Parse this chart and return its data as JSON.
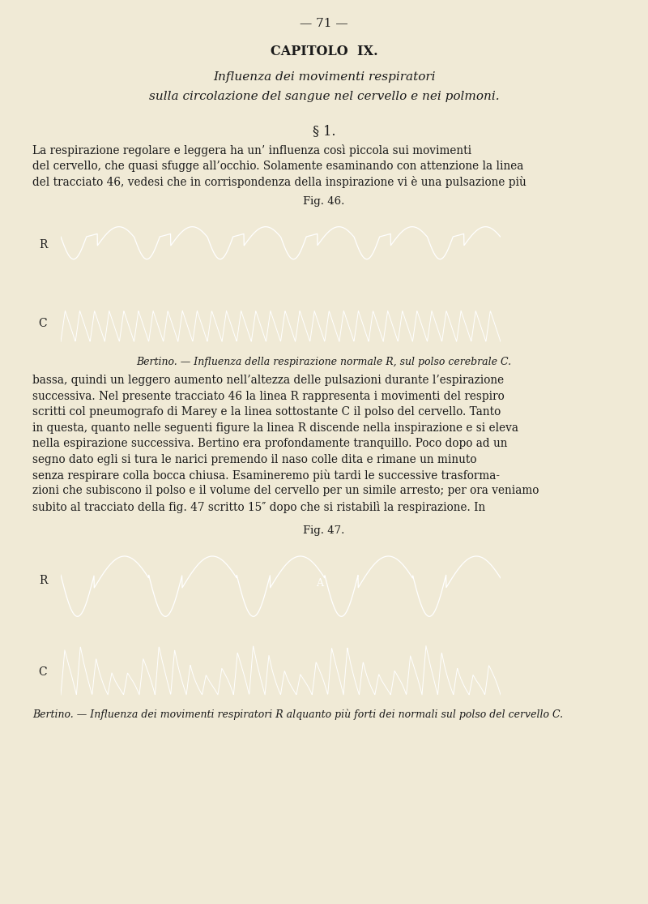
{
  "bg_color": "#f0ead6",
  "page_number": "— 71 —",
  "chapter_title": "CAPITOLO  IX.",
  "subtitle_line1": "Influenza dei movimenti respiratori",
  "subtitle_line2": "sulla circolazione del sangue nel cervello e nei polmoni.",
  "section": "§ 1.",
  "para1_line1": "La respirazione regolare e leggera ha un’ influenza così piccola sui movimenti",
  "para1_line2": "del cervello, che quasi sfugge all’occhio. Solamente esaminando con attenzione la linea",
  "para1_line3": "del tracciato 46, vedesi che in corrispondenza della inspirazione vi è una pulsazione più",
  "fig46_title": "Fig. 46.",
  "fig46_caption": "Bertino. — Influenza della respirazione normale R, sul polso cerebrale C.",
  "para2_line1": "bassa, quindi un leggero aumento nell’altezza delle pulsazioni durante l’espirazione",
  "para2_line2": "successiva. Nel presente tracciato 46 la linea R rappresenta i movimenti del respiro",
  "para2_line3": "scritti col pneumografo di Marey e la linea sottostante C il polso del cervello. Tanto",
  "para2_line4": "in questa, quanto nelle seguenti figure la linea R discende nella inspirazione e si eleva",
  "para2_line5": "nella espirazione successiva. Bertino era profondamente tranquillo. Poco dopo ad un",
  "para2_line6": "segno dato egli si tura le narici premendo il naso colle dita e rimane un minuto",
  "para2_line7": "senza respirare colla bocca chiusa. Esamineremo più tardi le successive trasforma-",
  "para2_line8": "zioni che subiscono il polso e il volume del cervello per un simile arresto; per ora veniamo",
  "para2_line9": "subito al tracciato della fig. 47 scritto 15″ dopo che si ristabilì la respirazione. In",
  "fig47_title": "Fig. 47.",
  "fig47_caption": "Bertino. — Influenza dei movimenti respiratori R alquanto più forti dei normali sul polso del cervello C.",
  "text_color": "#1a1a1a",
  "fig_bg": "#0d0d0d"
}
